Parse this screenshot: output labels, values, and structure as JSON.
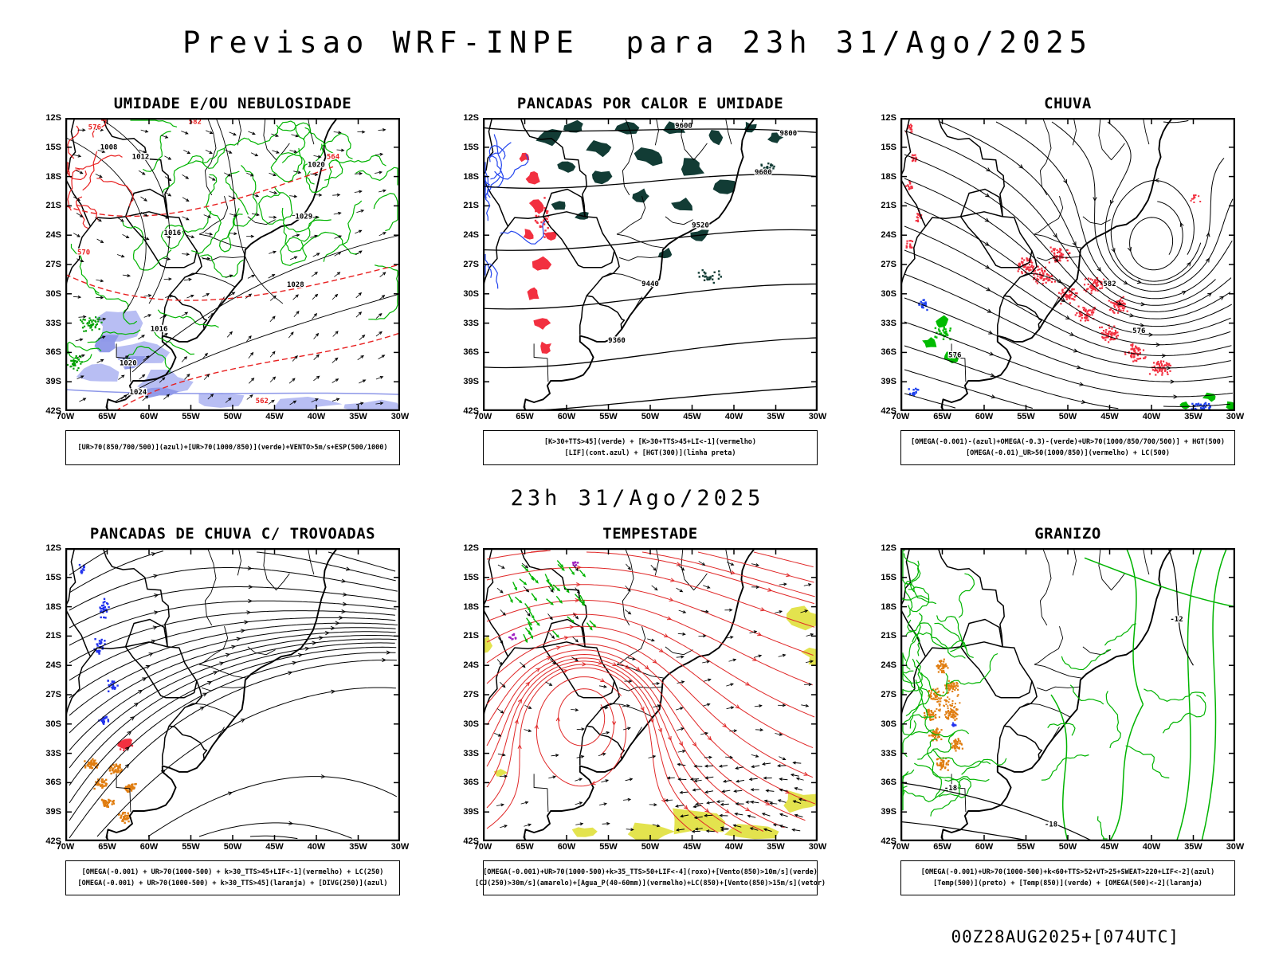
{
  "header": {
    "title": "Previsao WRF-INPE  para 23h 31/Ago/2025"
  },
  "section_datetime": "23h 31/Ago/2025",
  "footer_label": "00Z28AUG2025+[074UTC]",
  "axes": {
    "lat_ticks": [
      "12S",
      "15S",
      "18S",
      "21S",
      "24S",
      "27S",
      "30S",
      "33S",
      "36S",
      "39S",
      "42S"
    ],
    "lon_ticks": [
      "70W",
      "65W",
      "60W",
      "55W",
      "50W",
      "45W",
      "40W",
      "35W",
      "30W"
    ]
  },
  "colors": {
    "green_contour": "#00b400",
    "red": "#e82020",
    "dark_convection": "#123c35",
    "lavender": "#b4baf2",
    "orange": "#e07d10",
    "yellow": "#e3e34e",
    "blue": "#2244ee",
    "purple": "#a020c0"
  },
  "panels": [
    {
      "id": "umidade",
      "title": "UMIDADE E/OU NEBULOSIDADE",
      "caption_lines": [
        "[UR>70(850/700/500)](azul)+[UR>70(1000/850)](verde)+VENTO>5m/s+ESP(500/1000)"
      ],
      "map_labels": [
        [
          "1008",
          64.8,
          15.2,
          "#000"
        ],
        [
          "1012",
          61.0,
          16.2,
          "#000"
        ],
        [
          "1016",
          57.2,
          24.0,
          "#000"
        ],
        [
          "1016",
          58.8,
          33.8,
          "#000"
        ],
        [
          "1020",
          62.5,
          37.3,
          "#000"
        ],
        [
          "1024",
          61.3,
          40.3,
          "#000"
        ],
        [
          "1028",
          42.5,
          29.3,
          "#000"
        ],
        [
          "1020",
          40.0,
          17.0,
          "#000"
        ],
        [
          "1029",
          41.5,
          22.3,
          "#000"
        ],
        [
          "576",
          66.5,
          13.2,
          "#e82020"
        ],
        [
          "570",
          67.8,
          26.0,
          "#e82020"
        ],
        [
          "582",
          54.5,
          12.6,
          "#e82020"
        ],
        [
          "564",
          38.0,
          16.2,
          "#e82020"
        ],
        [
          "562",
          46.5,
          41.2,
          "#e82020"
        ]
      ]
    },
    {
      "id": "pancadas-calor",
      "title": "PANCADAS POR CALOR E UMIDADE",
      "caption_lines": [
        "[K>30+TTS>45](verde) + [K>30+TTS>45+LI<-1](vermelho)",
        "[LIF](cont.azul) + [HGT(300)](linha preta)"
      ],
      "map_labels": [
        [
          "9800",
          33.5,
          13.8,
          "#000"
        ],
        [
          "9600",
          46.0,
          13.0,
          "#000"
        ],
        [
          "9520",
          44.0,
          23.2,
          "#000"
        ],
        [
          "9440",
          50.0,
          29.2,
          "#000"
        ],
        [
          "9360",
          54.0,
          35.0,
          "#000"
        ],
        [
          "9600",
          36.5,
          17.8,
          "#000"
        ]
      ]
    },
    {
      "id": "chuva",
      "title": "CHUVA",
      "caption_lines": [
        "[OMEGA(-0.001)-(azul)+OMEGA(-0.3)-(verde)+UR>70(1000/850/700/500)] + HGT(500)",
        "[OMEGA(-0.01)_UR>50(1000/850)](vermelho) + LC(500)"
      ],
      "map_labels": [
        [
          "582",
          45.0,
          29.2,
          "#000"
        ],
        [
          "576",
          41.5,
          34.0,
          "#000"
        ],
        [
          "576",
          63.5,
          36.5,
          "#000"
        ]
      ]
    },
    {
      "id": "trovoadas",
      "title": "PANCADAS DE CHUVA C/ TROVOADAS",
      "caption_lines": [
        "[OMEGA(-0.001) + UR>70(1000-500) + k>30_TTS>45+LIF<-1](vermelho) + LC(250)",
        "[OMEGA(-0.001) + UR>70(1000-500) + k>30_TTS>45](laranja) + [DIVG(250)](azul)"
      ],
      "map_labels": []
    },
    {
      "id": "tempestade",
      "title": "TEMPESTADE",
      "caption_lines": [
        "[OMEGA(-0.001)+UR>70(1000-500)+k>35_TTS>50+LIF<-4](roxo)+[Vento(850)>10m/s](verde)",
        "[CJ(250)>30m/s](amarelo)+[Agua_P(40-60mm)](vermelho)+LC(850)+[Vento(850)>15m/s](vetor)"
      ],
      "map_labels": []
    },
    {
      "id": "granizo",
      "title": "GRANIZO",
      "caption_lines": [
        "[OMEGA(-0.001)+UR>70(1000-500)+k<60+TTS>52+VT>25+SWEAT>220+LIF<-2](azul)",
        "[Temp(500)](preto) + [Temp(850)](verde) + [OMEGA(500)<-2](laranja)"
      ],
      "map_labels": [
        [
          "-12",
          37.0,
          19.5,
          "#000"
        ],
        [
          "-18",
          64.0,
          36.8,
          "#000"
        ],
        [
          "-18",
          52.0,
          40.5,
          "#000"
        ]
      ]
    }
  ]
}
